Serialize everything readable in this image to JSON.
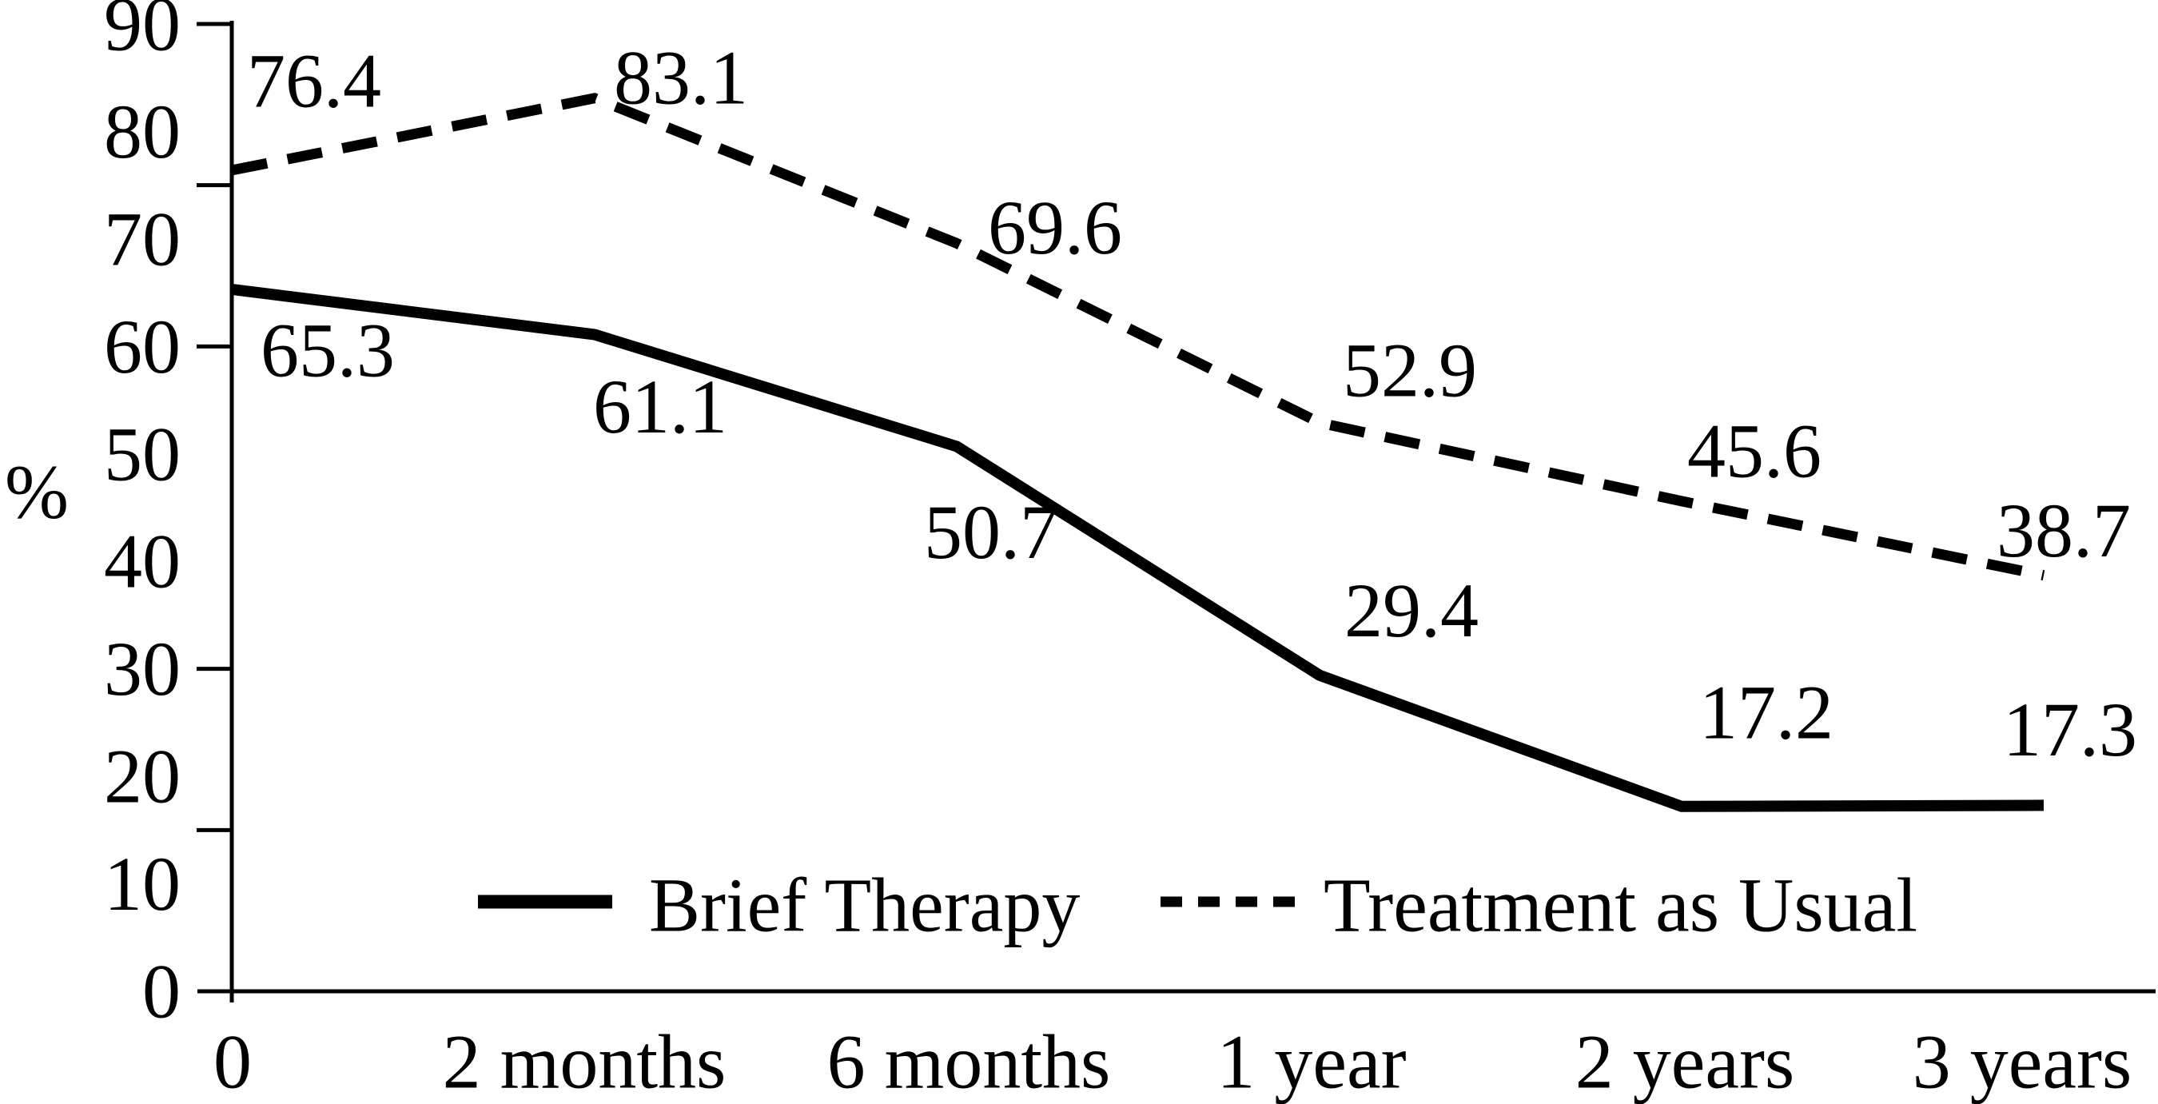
{
  "figure": {
    "background": "#ffffff",
    "ink_color": "#000000",
    "ylabel": "%"
  },
  "chart_data": {
    "type": "line",
    "title": "",
    "xlabel": "",
    "ylabel": "%",
    "categories": [
      "0",
      "2 months",
      "6 months",
      "1 year",
      "2 years",
      "3 years"
    ],
    "series": [
      {
        "name": "Brief Therapy",
        "line_style": "solid",
        "color": "#000000",
        "values": [
          65.3,
          61.1,
          50.7,
          29.4,
          17.2,
          17.3
        ],
        "data_labels": [
          "65.3",
          "61.1",
          "50.7",
          "29.4",
          "17.2",
          "17.3"
        ]
      },
      {
        "name": "Treatment as Usual",
        "line_style": "dashed",
        "color": "#000000",
        "values": [
          76.4,
          83.1,
          69.6,
          52.9,
          45.6,
          38.7
        ],
        "data_labels": [
          "76.4",
          "83.1",
          "69.6",
          "52.9",
          "45.6",
          "38.7"
        ]
      }
    ],
    "ylim": [
      0,
      90
    ],
    "ytick_label_values": [
      "0",
      "10",
      "20",
      "30",
      "40",
      "50",
      "60",
      "70",
      "80",
      "90"
    ],
    "ytick_mark_values": [
      15,
      30,
      60,
      75,
      90
    ],
    "grid": false,
    "data_labels_shown": true,
    "legend": {
      "position": "bottom-inside",
      "entries": [
        "Brief Therapy",
        "Treatment as Usual"
      ]
    }
  }
}
